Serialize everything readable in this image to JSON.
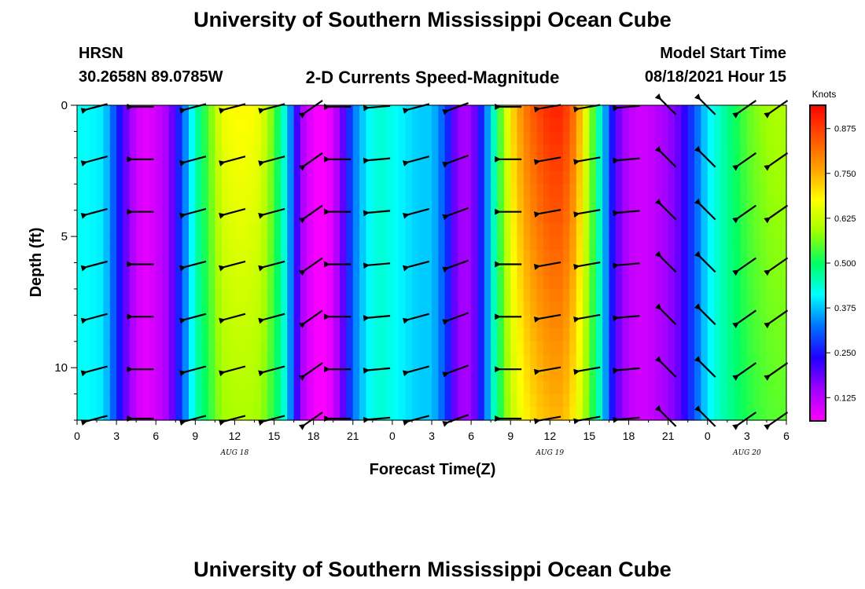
{
  "header": {
    "title": "University of Southern Mississippi Ocean Cube",
    "station": "HRSN",
    "coords": "30.2658N  89.0785W",
    "product": "2-D Currents Speed-Magnitude",
    "model_label": "Model Start Time",
    "model_time": "08/18/2021 Hour 15"
  },
  "footer": {
    "title": "University of Southern Mississippi Ocean Cube"
  },
  "chart_data": {
    "type": "heatmap",
    "xlabel": "Forecast Time(Z)",
    "ylabel": "Depth (ft)",
    "colorbar_label": "Knots",
    "x_range_hours": [
      0,
      54
    ],
    "ylim": [
      12,
      0
    ],
    "x_tick_labels": [
      "0",
      "3",
      "6",
      "9",
      "12",
      "15",
      "18",
      "21",
      "0",
      "3",
      "6",
      "9",
      "12",
      "15",
      "18",
      "21",
      "0",
      "3",
      "6"
    ],
    "y_ticks": [
      0,
      5,
      10
    ],
    "day_labels": [
      {
        "text": "AUG 18",
        "hour": 12
      },
      {
        "text": "AUG 19",
        "hour": 36
      },
      {
        "text": "AUG 20",
        "hour": 51
      }
    ],
    "colorbar": {
      "min": 0.06,
      "max": 0.94,
      "ticks": [
        0.125,
        0.25,
        0.375,
        0.5,
        0.625,
        0.75,
        0.875
      ],
      "tick_labels": [
        "0.125",
        "0.250",
        "0.375",
        "0.500",
        "0.625",
        "0.750",
        "0.875"
      ],
      "colors": [
        "#ff00ff",
        "#a000ff",
        "#2000ff",
        "#0070ff",
        "#00ffff",
        "#00ff60",
        "#a0ff00",
        "#ffff00",
        "#ffa000",
        "#ff5000",
        "#ff0000"
      ]
    },
    "surface_speed_by_hour": [
      {
        "hour": 0,
        "speed": 0.42
      },
      {
        "hour": 2,
        "speed": 0.4
      },
      {
        "hour": 3,
        "speed": 0.28
      },
      {
        "hour": 4,
        "speed": 0.15
      },
      {
        "hour": 5,
        "speed": 0.08
      },
      {
        "hour": 6,
        "speed": 0.1
      },
      {
        "hour": 7,
        "speed": 0.15
      },
      {
        "hour": 8,
        "speed": 0.3
      },
      {
        "hour": 9,
        "speed": 0.45
      },
      {
        "hour": 10,
        "speed": 0.55
      },
      {
        "hour": 11,
        "speed": 0.66
      },
      {
        "hour": 12,
        "speed": 0.68
      },
      {
        "hour": 13,
        "speed": 0.68
      },
      {
        "hour": 14,
        "speed": 0.66
      },
      {
        "hour": 15,
        "speed": 0.55
      },
      {
        "hour": 16,
        "speed": 0.4
      },
      {
        "hour": 17,
        "speed": 0.15
      },
      {
        "hour": 18,
        "speed": 0.07
      },
      {
        "hour": 19,
        "speed": 0.06
      },
      {
        "hour": 20,
        "speed": 0.15
      },
      {
        "hour": 21,
        "speed": 0.32
      },
      {
        "hour": 22,
        "speed": 0.4
      },
      {
        "hour": 23,
        "speed": 0.44
      },
      {
        "hour": 24,
        "speed": 0.42
      },
      {
        "hour": 25,
        "speed": 0.4
      },
      {
        "hour": 26,
        "speed": 0.38
      },
      {
        "hour": 27,
        "speed": 0.38
      },
      {
        "hour": 28,
        "speed": 0.3
      },
      {
        "hour": 29,
        "speed": 0.15
      },
      {
        "hour": 30,
        "speed": 0.14
      },
      {
        "hour": 31,
        "speed": 0.3
      },
      {
        "hour": 32,
        "speed": 0.5
      },
      {
        "hour": 33,
        "speed": 0.7
      },
      {
        "hour": 34,
        "speed": 0.8
      },
      {
        "hour": 35,
        "speed": 0.86
      },
      {
        "hour": 36,
        "speed": 0.9
      },
      {
        "hour": 37,
        "speed": 0.9
      },
      {
        "hour": 38,
        "speed": 0.8
      },
      {
        "hour": 39,
        "speed": 0.6
      },
      {
        "hour": 40,
        "speed": 0.4
      },
      {
        "hour": 41,
        "speed": 0.2
      },
      {
        "hour": 42,
        "speed": 0.12
      },
      {
        "hour": 43,
        "speed": 0.1
      },
      {
        "hour": 44,
        "speed": 0.12
      },
      {
        "hour": 45,
        "speed": 0.15
      },
      {
        "hour": 46,
        "speed": 0.2
      },
      {
        "hour": 47,
        "speed": 0.3
      },
      {
        "hour": 48,
        "speed": 0.4
      },
      {
        "hour": 49,
        "speed": 0.45
      },
      {
        "hour": 50,
        "speed": 0.5
      },
      {
        "hour": 51,
        "speed": 0.55
      },
      {
        "hour": 52,
        "speed": 0.58
      },
      {
        "hour": 53,
        "speed": 0.6
      },
      {
        "hour": 54,
        "speed": 0.6
      }
    ],
    "vector_hours": [
      1.5,
      5,
      9,
      12,
      15,
      18,
      20,
      23,
      26,
      29,
      33,
      36,
      39,
      42,
      45,
      48,
      51,
      54
    ],
    "vector_depths_ft": [
      0,
      2,
      4,
      6,
      8,
      10,
      12
    ],
    "vector_directions_deg_from_east": [
      15,
      0,
      15,
      15,
      15,
      35,
      0,
      5,
      15,
      20,
      0,
      10,
      10,
      5,
      -45,
      -45,
      35,
      35
    ]
  }
}
